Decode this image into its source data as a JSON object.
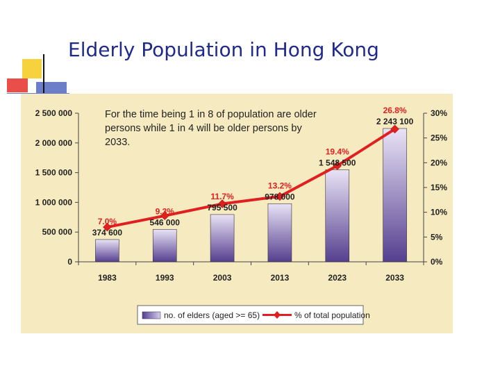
{
  "slide": {
    "title": "Elderly Population in Hong Kong",
    "note": "For the time being 1 in 8 of population are older persons while 1 in 4 will be older persons by 2033."
  },
  "colors": {
    "panel_bg": "#f6eac0",
    "bar_top": "#e9e3f6",
    "bar_bottom": "#553f8f",
    "line": "#e02020",
    "label_red": "#e02020",
    "title": "#1f2a8a"
  },
  "chart_data": {
    "type": "bar",
    "categories": [
      "1983",
      "1993",
      "2003",
      "2013",
      "2023",
      "2033"
    ],
    "series": [
      {
        "name": "no. of elders (aged >= 65)",
        "type": "bar",
        "axis": "left",
        "values": [
          374600,
          546000,
          795500,
          978000,
          1548500,
          2243100
        ],
        "value_labels": [
          "374 600",
          "546 000",
          "795 500",
          "978 000",
          "1 548 500",
          "2 243 100"
        ]
      },
      {
        "name": "% of total population",
        "type": "line",
        "axis": "right",
        "values": [
          7.0,
          9.3,
          11.7,
          13.2,
          19.4,
          26.8
        ],
        "value_labels": [
          "7.0%",
          "9.3%",
          "11.7%",
          "13.2%",
          "19.4%",
          "26.8%"
        ]
      }
    ],
    "y_left": {
      "range": [
        0,
        2500000
      ],
      "ticks": [
        "0",
        "500 000",
        "1 000 000",
        "1 500 000",
        "2 000 000",
        "2 500 000"
      ]
    },
    "y_right": {
      "range": [
        0,
        30
      ],
      "ticks": [
        "0%",
        "5%",
        "10%",
        "15%",
        "20%",
        "25%",
        "30%"
      ]
    },
    "legend_position": "bottom-center",
    "grid": false
  }
}
